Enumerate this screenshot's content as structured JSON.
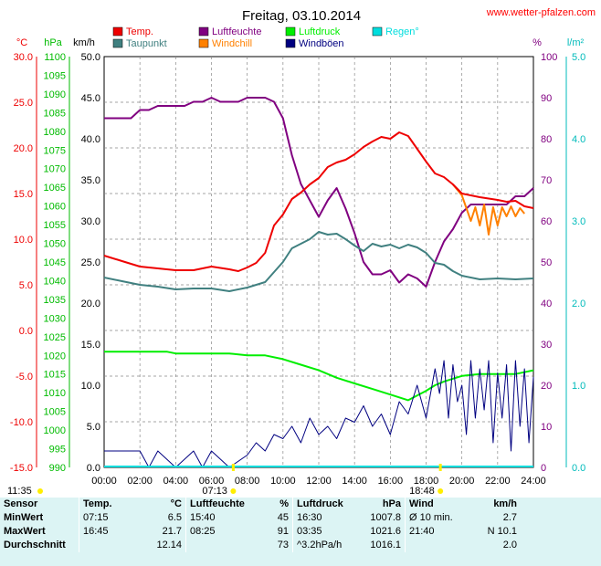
{
  "title": "Freitag, 03.10.2014",
  "site_url": "www.wetter-pfalzen.com",
  "chart_data": {
    "type": "line",
    "title": "Freitag, 03.10.2014",
    "legend": [
      {
        "label": "Temp.",
        "color": "#ee0000"
      },
      {
        "label": "Luftfeuchte",
        "color": "#800080"
      },
      {
        "label": "Luftdruck",
        "color": "#00ee00"
      },
      {
        "label": "Regen°",
        "color": "#00dddd"
      },
      {
        "label": "Taupunkt",
        "color": "#408080"
      },
      {
        "label": "Windchill",
        "color": "#ff8000"
      },
      {
        "label": "Windböen",
        "color": "#000080"
      }
    ],
    "axes": {
      "temp": {
        "unit": "°C",
        "color": "#ee0000",
        "min": -15,
        "max": 30,
        "ticks": [
          "30.0",
          "25.0",
          "20.0",
          "15.0",
          "10.0",
          "5.0",
          "0.0",
          "-5.0",
          "-10.0",
          "-15.0"
        ]
      },
      "pressure": {
        "unit": "hPa",
        "color": "#00bb00",
        "min": 990,
        "max": 1100,
        "ticks": [
          "1100",
          "1095",
          "1090",
          "1085",
          "1080",
          "1075",
          "1070",
          "1065",
          "1060",
          "1055",
          "1050",
          "1045",
          "1040",
          "1035",
          "1030",
          "1025",
          "1020",
          "1015",
          "1010",
          "1005",
          "1000",
          "995",
          "990"
        ]
      },
      "wind": {
        "unit": "km/h",
        "color": "#000000",
        "min": 0,
        "max": 50,
        "ticks": [
          "50.0",
          "45.0",
          "40.0",
          "35.0",
          "30.0",
          "25.0",
          "20.0",
          "15.0",
          "10.0",
          "5.0",
          "0.0"
        ]
      },
      "humidity": {
        "unit": "%",
        "color": "#800080",
        "min": 0,
        "max": 100,
        "ticks": [
          "100",
          "90",
          "80",
          "70",
          "60",
          "50",
          "40",
          "30",
          "20",
          "10",
          "0"
        ]
      },
      "rain": {
        "unit": "l/m²",
        "color": "#00bbbb",
        "min": 0,
        "max": 5,
        "ticks": [
          "5.0",
          "4.0",
          "3.0",
          "2.0",
          "1.0",
          "0.0"
        ]
      }
    },
    "x_ticks": [
      "00:00",
      "02:00",
      "04:00",
      "06:00",
      "08:00",
      "10:00",
      "12:00",
      "14:00",
      "16:00",
      "18:00",
      "20:00",
      "22:00",
      "24:00"
    ],
    "x_range_hours": [
      0,
      24
    ],
    "sun_markers": [
      {
        "label": "11:35",
        "hour": null
      },
      {
        "label": "07:13",
        "hour": 7.22
      },
      {
        "label": "18:48",
        "hour": 18.8
      }
    ],
    "grid": true,
    "series": [
      {
        "name": "Temp.",
        "axis": "temp",
        "color": "#ee0000",
        "x": [
          0,
          1,
          2,
          3,
          4,
          5,
          6,
          7,
          7.5,
          8,
          8.5,
          9,
          9.5,
          10,
          10.5,
          11,
          11.5,
          12,
          12.5,
          13,
          13.5,
          14,
          14.5,
          15,
          15.5,
          16,
          16.5,
          17,
          17.5,
          18,
          18.5,
          19,
          19.5,
          20,
          21,
          22,
          22.5,
          23,
          23.5,
          24
        ],
        "y": [
          8.2,
          7.6,
          7,
          6.8,
          6.6,
          6.6,
          7,
          6.7,
          6.5,
          6.9,
          7.4,
          8.5,
          11.5,
          12.7,
          14.4,
          15.1,
          16,
          16.7,
          17.9,
          18.4,
          18.7,
          19.3,
          20.1,
          20.7,
          21.2,
          21,
          21.7,
          21.3,
          19.9,
          18.5,
          17.2,
          16.8,
          16,
          15,
          14.6,
          14.3,
          14.1,
          14.2,
          13.6,
          13.4
        ]
      },
      {
        "name": "Taupunkt",
        "axis": "temp",
        "color": "#408080",
        "x": [
          0,
          1,
          2,
          3,
          4,
          5,
          6,
          7,
          8,
          9,
          10,
          10.5,
          11,
          11.5,
          12,
          12.5,
          13,
          13.5,
          14,
          14.5,
          15,
          15.5,
          16,
          16.5,
          17,
          17.5,
          18,
          18.5,
          19,
          19.5,
          20,
          21,
          22,
          23,
          24
        ],
        "y": [
          5.8,
          5.4,
          5,
          4.8,
          4.5,
          4.6,
          4.6,
          4.3,
          4.7,
          5.3,
          7.5,
          9,
          9.5,
          10,
          10.8,
          10.5,
          10.6,
          10,
          9.3,
          8.7,
          9.5,
          9.2,
          9.4,
          9,
          9.4,
          9.1,
          8.5,
          7.4,
          7.2,
          6.5,
          6,
          5.6,
          5.7,
          5.6,
          5.7
        ]
      },
      {
        "name": "Luftfeuchte",
        "axis": "humidity",
        "color": "#800080",
        "x": [
          0,
          0.5,
          1,
          1.5,
          2,
          2.5,
          3,
          3.5,
          4,
          4.5,
          5,
          5.5,
          6,
          6.5,
          7,
          7.5,
          8,
          8.5,
          9,
          9.5,
          10,
          10.5,
          11,
          11.5,
          12,
          12.5,
          13,
          13.5,
          14,
          14.5,
          15,
          15.5,
          16,
          16.5,
          17,
          17.5,
          18,
          18.5,
          19,
          19.5,
          20,
          20.5,
          21,
          21.5,
          22,
          22.5,
          23,
          23.5,
          24
        ],
        "y": [
          85,
          85,
          85,
          85,
          87,
          87,
          88,
          88,
          88,
          88,
          89,
          89,
          90,
          89,
          89,
          89,
          90,
          90,
          90,
          89,
          85,
          76,
          69,
          65,
          61,
          65,
          68,
          63,
          57,
          50,
          47,
          47,
          48,
          45,
          47,
          46,
          44,
          50,
          55,
          58,
          62,
          64,
          64,
          64,
          64,
          64,
          66,
          66,
          68
        ]
      },
      {
        "name": "Luftdruck",
        "axis": "pressure",
        "color": "#00ee00",
        "x": [
          0,
          1,
          2,
          3,
          3.5,
          4,
          5,
          6,
          7,
          8,
          9,
          10,
          11,
          12,
          13,
          14,
          15,
          16,
          17,
          18,
          18.5,
          19,
          20,
          21,
          22,
          23,
          24
        ],
        "y": [
          1021,
          1021,
          1021,
          1021,
          1021,
          1020.5,
          1020.5,
          1020.5,
          1020.5,
          1020,
          1020,
          1019,
          1017.5,
          1016,
          1014,
          1012.5,
          1011,
          1009.5,
          1008,
          1010.5,
          1012,
          1013,
          1014.5,
          1015,
          1015,
          1015,
          1016
        ]
      },
      {
        "name": "Windchill",
        "axis": "temp",
        "color": "#ff8000",
        "x": [
          19.5,
          20,
          20.5,
          20.75,
          21,
          21.25,
          21.5,
          21.75,
          22,
          22.25,
          22.5,
          22.75,
          23,
          23.25,
          23.5
        ],
        "y": [
          16,
          14.8,
          12,
          13.5,
          11.5,
          13.8,
          10.5,
          13.5,
          11.5,
          13.5,
          12.5,
          13.6,
          12.5,
          13.4,
          12.8
        ]
      },
      {
        "name": "Windböen",
        "axis": "wind",
        "color": "#000080",
        "x": [
          0,
          1,
          2,
          2.5,
          3,
          4,
          5,
          5.5,
          6,
          7,
          8,
          8.5,
          9,
          9.5,
          10,
          10.5,
          11,
          11.5,
          12,
          12.5,
          13,
          13.5,
          14,
          14.5,
          15,
          15.5,
          16,
          16.5,
          17,
          17.5,
          18,
          18.5,
          18.75,
          19,
          19.25,
          19.5,
          19.75,
          20,
          20.25,
          20.5,
          20.75,
          21,
          21.25,
          21.5,
          21.75,
          22,
          22.25,
          22.5,
          22.75,
          23,
          23.25,
          23.5,
          23.75,
          24
        ],
        "y": [
          2,
          2,
          2,
          0,
          2,
          0,
          2,
          0,
          2,
          0,
          1.5,
          3,
          2,
          4,
          3.5,
          5,
          3,
          6,
          4,
          5,
          3.5,
          6,
          5.5,
          7.5,
          5,
          6.5,
          4,
          8,
          6.5,
          10,
          6,
          12,
          9,
          13,
          6,
          12.5,
          8,
          10,
          4,
          13,
          6,
          12,
          7,
          13,
          3,
          11.5,
          6,
          12.5,
          2,
          13,
          5,
          12,
          3,
          11
        ]
      }
    ],
    "regen_line": 0
  },
  "stats": {
    "headers": [
      "Sensor",
      "Temp.",
      "°C",
      "Luftfeuchte",
      "%",
      "Luftdruck",
      "hPa",
      "Wind",
      "km/h"
    ],
    "rows": [
      {
        "label": "MinWert",
        "temp_time": "07:15",
        "temp_val": "6.5",
        "hum_time": "15:40",
        "hum_val": "45",
        "press_time": "16:30",
        "press_val": "1007.8",
        "wind_time": "Ø 10 min.",
        "wind_val": "2.7"
      },
      {
        "label": "MaxWert",
        "temp_time": "16:45",
        "temp_val": "21.7",
        "hum_time": "08:25",
        "hum_val": "91",
        "press_time": "03:35",
        "press_val": "1021.6",
        "wind_time": "21:40",
        "wind_val": "N 10.1"
      },
      {
        "label": "Durchschnitt",
        "temp_time": "",
        "temp_val": "12.14",
        "hum_time": "",
        "hum_val": "73",
        "press_time": "^3.2hPa/h",
        "press_val": "1016.1",
        "wind_time": "",
        "wind_val": "2.0"
      }
    ]
  }
}
